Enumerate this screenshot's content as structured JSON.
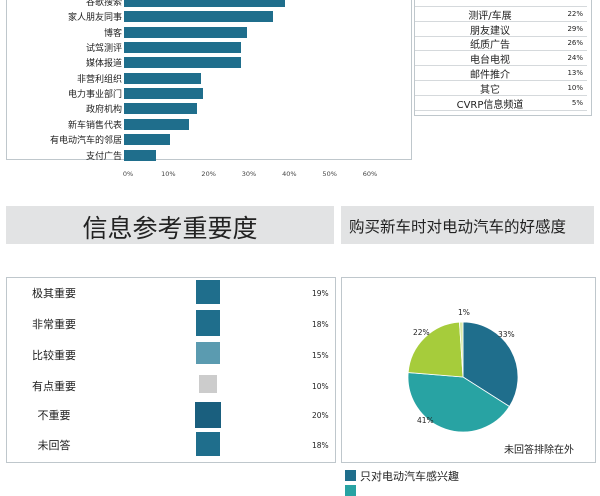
{
  "source_chart": {
    "categories": [
      "谷歌搜索",
      "家人朋友同事",
      "博客",
      "试驾测评",
      "媒体报道",
      "非营利组织",
      "电力事业部门",
      "政府机构",
      "新车销售代表",
      "有电动汽车的邻居",
      "支付广告"
    ],
    "values": [
      40,
      37,
      30.5,
      29,
      29,
      19,
      19.5,
      18,
      16,
      11.5,
      8
    ],
    "xticks": [
      "0%",
      "10%",
      "20%",
      "30%",
      "40%",
      "50%",
      "60%"
    ],
    "xlim": [
      0,
      60
    ],
    "color": "#1f6e8c"
  },
  "source_table": {
    "rows": [
      {
        "name": "",
        "pct": ""
      },
      {
        "name": "测评/车展",
        "pct": "22%"
      },
      {
        "name": "朋友建议",
        "pct": "29%"
      },
      {
        "name": "纸质广告",
        "pct": "26%"
      },
      {
        "name": "电台电视",
        "pct": "24%"
      },
      {
        "name": "邮件推介",
        "pct": "13%"
      },
      {
        "name": "其它",
        "pct": "10%"
      },
      {
        "name": "CVRP信息频道",
        "pct": "5%"
      }
    ]
  },
  "headings": {
    "importance": "信息参考重要度",
    "favorability": "购买新车时对电动汽车的好感度"
  },
  "chart_data": [
    {
      "type": "bar",
      "orientation": "horizontal",
      "categories": [
        "谷歌搜索",
        "家人朋友同事",
        "博客",
        "试驾测评",
        "媒体报道",
        "非营利组织",
        "电力事业部门",
        "政府机构",
        "新车销售代表",
        "有电动汽车的邻居",
        "支付广告"
      ],
      "values": [
        40,
        37,
        30.5,
        29,
        29,
        19,
        19.5,
        18,
        16,
        11.5,
        8
      ],
      "xlim": [
        0,
        60
      ],
      "xticks": [
        "0%",
        "10%",
        "20%",
        "30%",
        "40%",
        "50%",
        "60%"
      ]
    },
    {
      "type": "bar",
      "title": "信息参考重要度",
      "categories": [
        "极其重要",
        "非常重要",
        "比较重要",
        "有点重要",
        "不重要",
        "未回答"
      ],
      "values": [
        19,
        18,
        15,
        10,
        20,
        18
      ],
      "labels": [
        "19%",
        "18%",
        "15%",
        "10%",
        "20%",
        "18%"
      ],
      "colors": [
        "#1f6e8c",
        "#1f6e8c",
        "#5b9bb0",
        "#cccccc",
        "#1a5f7e",
        "#1f6e8c"
      ]
    },
    {
      "type": "pie",
      "title": "购买新车时对电动汽车的好感度",
      "values": [
        33,
        41,
        22,
        1
      ],
      "labels": [
        "33%",
        "41%",
        "22%",
        "1%"
      ],
      "colors": [
        "#1f6e8c",
        "#28a3a3",
        "#a6cc3b",
        "#d9e8a8"
      ],
      "note": "未回答排除在外",
      "legend": [
        "只对电动汽车感兴趣"
      ]
    }
  ],
  "legend_colors": [
    "#1f6e8c",
    "#28a3a3"
  ]
}
